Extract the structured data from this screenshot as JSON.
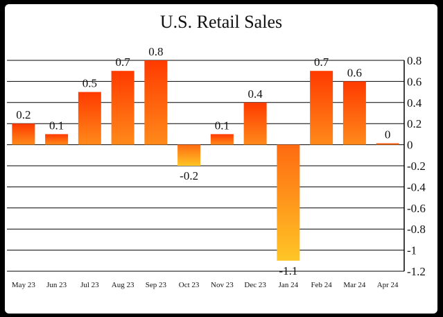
{
  "chart_data": {
    "type": "bar",
    "title": "U.S. Retail Sales",
    "categories": [
      "May 23",
      "Jun 23",
      "Jul 23",
      "Aug 23",
      "Sep 23",
      "Oct 23",
      "Nov 23",
      "Dec 23",
      "Jan 24",
      "Feb 24",
      "Mar 24",
      "Apr 24"
    ],
    "values": [
      0.2,
      0.1,
      0.5,
      0.7,
      0.8,
      -0.2,
      0.1,
      0.4,
      -1.1,
      0.7,
      0.6,
      0
    ],
    "data_labels": [
      "0.2",
      "0.1",
      "0.5",
      "0.7",
      "0.8",
      "-0.2",
      "0.1",
      "0.4",
      "-1.1",
      "0.7",
      "0.6",
      "0"
    ],
    "yticks": [
      0.8,
      0.6,
      0.4,
      0.2,
      0,
      -0.2,
      -0.4,
      -0.6,
      -0.8,
      -1,
      -1.2
    ],
    "ytick_labels": [
      "0.8",
      "0.6",
      "0.4",
      "0.2",
      "0",
      "-0.2",
      "-0.4",
      "-0.6",
      "-0.8",
      "-1",
      "-1.2"
    ],
    "ylim": [
      -1.2,
      0.8
    ],
    "y_axis_side": "right",
    "grid": true,
    "colors": {
      "positive_top": "#ff3a00",
      "positive_bottom": "#ff8a1a",
      "negative_top": "#ff6a10",
      "negative_bottom": "#ffc626",
      "grid": "#000000",
      "background": "#ffffff",
      "frame": "#000000"
    }
  }
}
